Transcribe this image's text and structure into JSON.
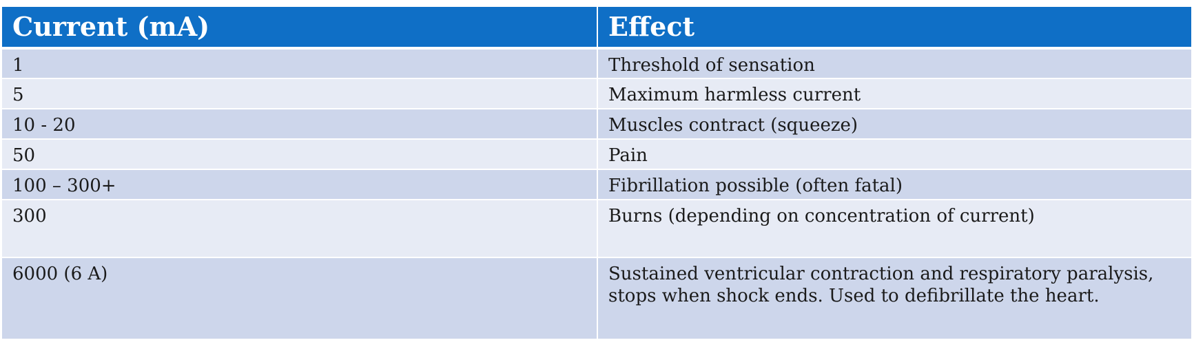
{
  "table": {
    "headers": {
      "current": "Current (mA)",
      "effect": "Effect"
    },
    "rows": [
      {
        "current": "1",
        "effect": [
          "Threshold of sensation"
        ]
      },
      {
        "current": "5",
        "effect": [
          "Maximum harmless current"
        ]
      },
      {
        "current": "10 - 20",
        "effect": [
          "Muscles contract (squeeze)"
        ]
      },
      {
        "current": "50",
        "effect": [
          "Pain"
        ]
      },
      {
        "current": "100 – 300+",
        "effect": [
          "Fibrillation possible (often fatal)"
        ]
      },
      {
        "current": "300",
        "effect": [
          "Burns (depending on concentration of current)"
        ]
      },
      {
        "current": "6000 (6 A)",
        "effect": [
          "Sustained ventricular contraction and respiratory paralysis,",
          "stops when shock ends. Used to defibrillate the heart."
        ]
      }
    ]
  },
  "colors": {
    "header_background": "#0f6fc6",
    "header_text": "#ffffff",
    "row_band_dark": "#cdd6eb",
    "row_band_light": "#e7ebf5",
    "body_text": "#1a1a1a"
  }
}
